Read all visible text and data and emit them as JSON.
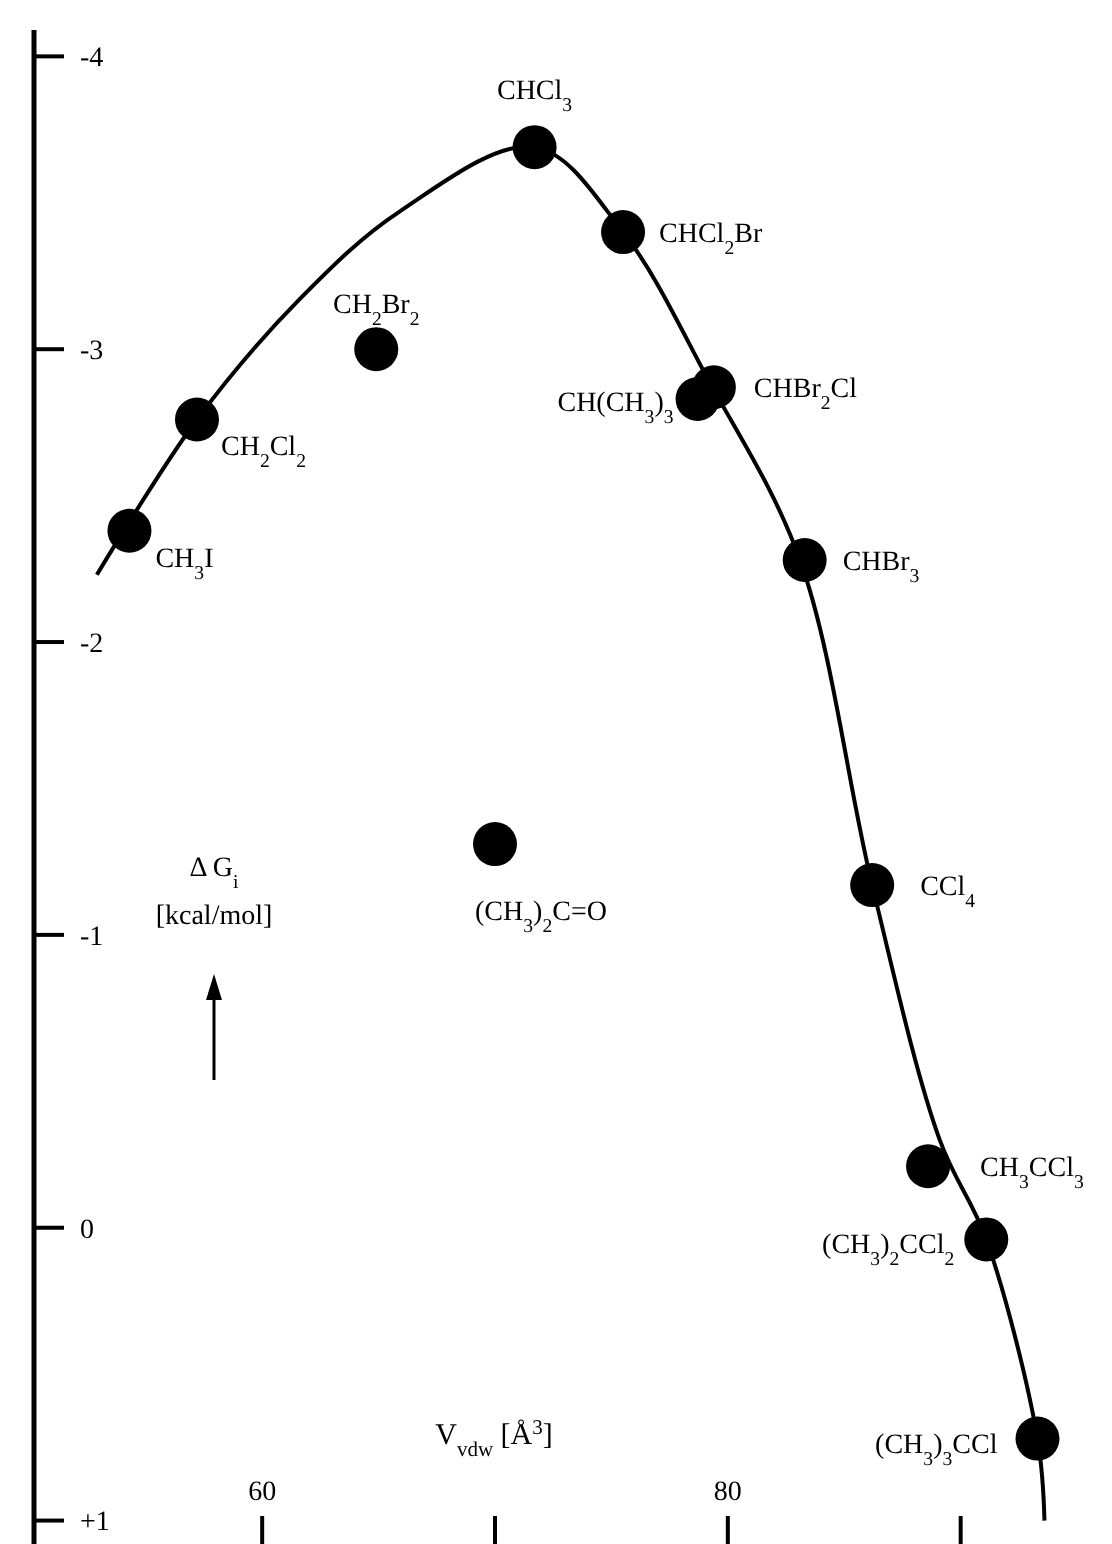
{
  "chart_data": {
    "type": "scatter",
    "xlabel": "V$_{vdw}$  [Å$^{3}$]",
    "ylabel": "Δ G$_{i}$\n[kcal/mol]",
    "xlim": [
      50.2,
      96.5
    ],
    "ylim": [
      1.08,
      -4.09
    ],
    "xticks": [
      60,
      {
        "value": 70,
        "label": null
      },
      80,
      {
        "value": 90,
        "label": null
      }
    ],
    "yticks": [
      -4,
      -3,
      -2,
      -1,
      0,
      {
        "value": 1,
        "label": "+1"
      }
    ],
    "grid": false,
    "series": [
      {
        "type": "line",
        "color": "#000000",
        "marker": "none",
        "line_style": "solid",
        "x": [
          52.9,
          57.2,
          61.6,
          65.9,
          71.7,
          75.5,
          79.2,
          83.1,
          86.2,
          89.1,
          91.1,
          93.3,
          93.6
        ],
        "values": [
          -2.23,
          -2.76,
          -3.17,
          -3.47,
          -3.69,
          -3.4,
          -2.89,
          -2.28,
          -1.17,
          -0.3,
          0.04,
          0.72,
          1.0
        ]
      },
      {
        "color": "#000000",
        "marker": "circle",
        "x": [
          54.3,
          57.2,
          64.9,
          71.7,
          75.5,
          78.7,
          79.4,
          83.3,
          86.2,
          88.6,
          91.1,
          93.3,
          70.0
        ],
        "values": [
          -2.38,
          -2.76,
          -3.0,
          -3.69,
          -3.4,
          -2.83,
          -2.87,
          -2.28,
          -1.17,
          -0.21,
          0.04,
          0.72,
          -1.31
        ]
      }
    ],
    "annotations": [
      {
        "text": "CH$_{3}$I",
        "x": 54.3,
        "y": -2.38
      },
      {
        "text": "CH$_{2}$Cl$_{2}$",
        "x": 57.2,
        "y": -2.76
      },
      {
        "text": "CH$_{2}$Br$_{2}$",
        "x": 64.9,
        "y": -3.0
      },
      {
        "text": "CHCl$_{3}$",
        "x": 71.7,
        "y": -3.69
      },
      {
        "text": "CHCl$_{2}$Br",
        "x": 75.5,
        "y": -3.4
      },
      {
        "text": "CH(CH$_{3}$)$_{3}$",
        "x": 78.7,
        "y": -2.83
      },
      {
        "text": "CHBr$_{2}$Cl",
        "x": 79.4,
        "y": -2.87
      },
      {
        "text": "CHBr$_{3}$",
        "x": 83.3,
        "y": -2.28
      },
      {
        "text": "CCl$_{4}$",
        "x": 86.2,
        "y": -1.17
      },
      {
        "text": "CH$_{3}$CCl$_{3}$",
        "x": 88.6,
        "y": -0.21
      },
      {
        "text": "(CH$_{3}$)$_{2}$CCl$_{2}$",
        "x": 91.1,
        "y": 0.04
      },
      {
        "text": "(CH$_{3}$)$_{3}$CCl",
        "x": 93.3,
        "y": 0.72
      },
      {
        "text": "(CH$_{3}$)$_{2}$C=O",
        "x": 70.0,
        "y": -1.31
      }
    ]
  }
}
